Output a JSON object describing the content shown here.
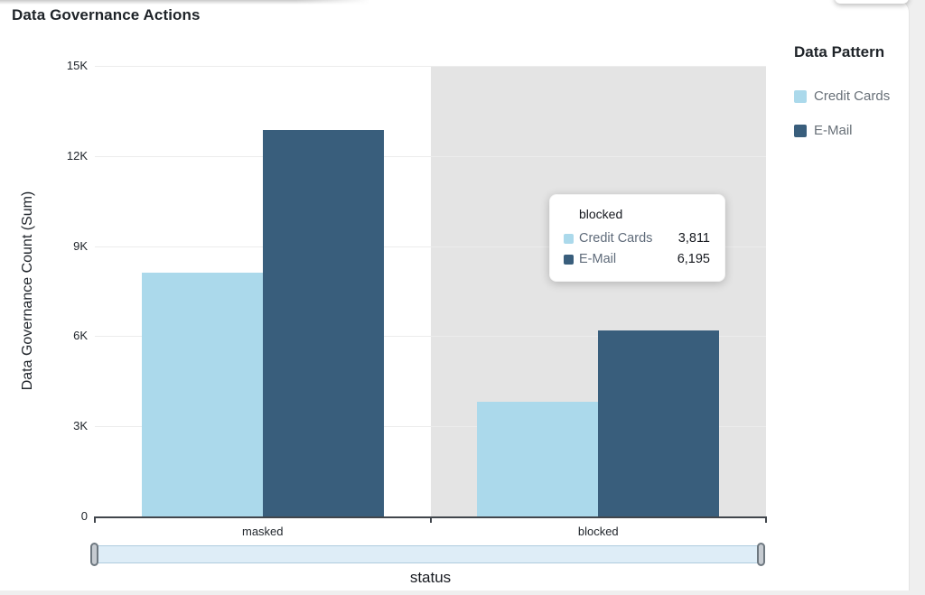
{
  "title": "Data Governance Actions",
  "chart_data": {
    "type": "bar",
    "title": "Data Governance Actions",
    "categories": [
      "masked",
      "blocked"
    ],
    "series": [
      {
        "name": "Credit Cards",
        "color": "#abd9eb",
        "values": [
          8120,
          3811
        ]
      },
      {
        "name": "E-Mail",
        "color": "#395e7c",
        "values": [
          12860,
          6195
        ]
      }
    ],
    "xlabel": "status",
    "ylabel": "Data Governance Count (Sum)",
    "ylim": [
      0,
      15000
    ],
    "grid": true,
    "legend_position": "right",
    "highlighted_category": "blocked",
    "highlight_color": "#e4e4e4"
  },
  "y_axis": {
    "label": "Data Governance Count (Sum)",
    "ticks": [
      "15K",
      "12K",
      "9K",
      "6K",
      "3K",
      "0"
    ]
  },
  "x_axis": {
    "label": "status",
    "categories": [
      "masked",
      "blocked"
    ]
  },
  "legend": {
    "title": "Data Pattern",
    "items": [
      {
        "label": "Credit Cards",
        "color": "#abd9eb"
      },
      {
        "label": "E-Mail",
        "color": "#395e7c"
      }
    ]
  },
  "tooltip": {
    "title": "blocked",
    "rows": [
      {
        "label": "Credit Cards",
        "value": "3,811",
        "color": "#abd9eb"
      },
      {
        "label": "E-Mail",
        "value": "6,195",
        "color": "#395e7c"
      }
    ]
  }
}
